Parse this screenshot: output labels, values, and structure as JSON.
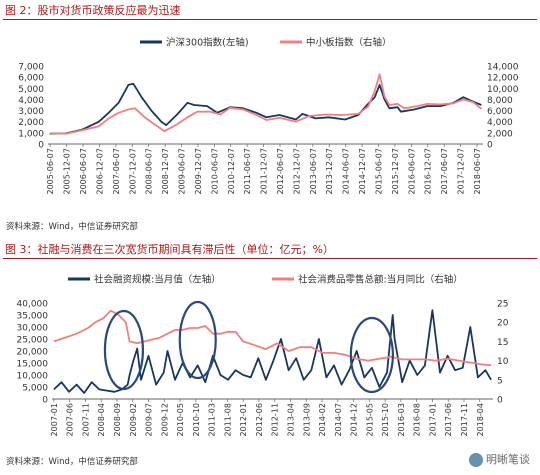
{
  "fig2": {
    "title": "图 2：股市对货币政策反应最为迅速",
    "source": "资料来源：Wind，中信证券研究部",
    "colors": {
      "s1": "#17375e",
      "s2": "#f08080"
    }
  },
  "fig3": {
    "title": "图 3：社融与消费在三次宽货币期间具有滞后性（单位：亿元；%）",
    "source": "资料来源：Wind，中信证券研究部",
    "colors": {
      "s1": "#17375e",
      "s2": "#f08080",
      "circle": "#2b4a7a"
    }
  },
  "watermark": "明晰笔谈",
  "chart_data": [
    {
      "type": "line",
      "title": "股市对货币政策反应最为迅速",
      "y_left_lim": [
        0,
        7000
      ],
      "y_left_ticks": [
        "0",
        "1,000",
        "2,000",
        "3,000",
        "4,000",
        "5,000",
        "6,000",
        "7,000"
      ],
      "y_right_lim": [
        0,
        14000
      ],
      "y_right_ticks": [
        "0",
        "2,000",
        "4,000",
        "6,000",
        "8,000",
        "10,000",
        "12,000",
        "14,000"
      ],
      "x_ticks": [
        "2005-06-07",
        "2005-12-07",
        "2006-06-07",
        "2006-12-07",
        "2007-06-07",
        "2007-12-07",
        "2008-06-07",
        "2008-12-07",
        "2009-06-07",
        "2009-12-07",
        "2010-06-07",
        "2010-12-07",
        "2011-06-07",
        "2011-12-07",
        "2012-06-07",
        "2012-12-07",
        "2013-06-07",
        "2013-12-07",
        "2014-06-07",
        "2014-12-07",
        "2015-06-07",
        "2015-12-07",
        "2016-06-07",
        "2016-12-07",
        "2017-06-07",
        "2017-12-07",
        "2018-06-07"
      ],
      "series": [
        {
          "name": "沪深300指数(左轴)",
          "axis": "left",
          "x": [
            2005.4,
            2005.9,
            2006.4,
            2006.9,
            2007.2,
            2007.5,
            2007.8,
            2007.95,
            2008.2,
            2008.5,
            2008.8,
            2008.95,
            2009.3,
            2009.6,
            2009.8,
            2010.2,
            2010.5,
            2010.9,
            2011.3,
            2011.7,
            2012.0,
            2012.4,
            2012.9,
            2013.1,
            2013.5,
            2013.9,
            2014.4,
            2014.8,
            2015.1,
            2015.3,
            2015.45,
            2015.6,
            2015.75,
            2016.0,
            2016.1,
            2016.5,
            2016.9,
            2017.3,
            2017.7,
            2018.0,
            2018.3,
            2018.55
          ],
          "y": [
            920,
            950,
            1300,
            2000,
            2800,
            3700,
            5300,
            5400,
            4200,
            3000,
            2000,
            1700,
            2700,
            3700,
            3500,
            3400,
            2800,
            3300,
            3200,
            2800,
            2400,
            2600,
            2200,
            2700,
            2300,
            2400,
            2200,
            2600,
            3600,
            4200,
            5300,
            4000,
            3200,
            3300,
            2900,
            3100,
            3400,
            3400,
            3700,
            4200,
            3800,
            3500
          ]
        },
        {
          "name": "中小板指数（右轴）",
          "axis": "right",
          "x": [
            2005.4,
            2005.9,
            2006.4,
            2006.9,
            2007.2,
            2007.5,
            2007.8,
            2008.0,
            2008.3,
            2008.6,
            2008.9,
            2009.3,
            2009.6,
            2009.9,
            2010.3,
            2010.6,
            2010.9,
            2011.3,
            2011.7,
            2012.0,
            2012.4,
            2012.9,
            2013.3,
            2013.8,
            2014.3,
            2014.8,
            2015.1,
            2015.3,
            2015.45,
            2015.6,
            2015.75,
            2016.0,
            2016.2,
            2016.6,
            2016.9,
            2017.3,
            2017.7,
            2018.0,
            2018.3,
            2018.55
          ],
          "y": [
            1900,
            1850,
            2500,
            3200,
            4600,
            5600,
            6200,
            6400,
            4800,
            3500,
            2300,
            3600,
            4800,
            5800,
            5800,
            5300,
            6500,
            6200,
            5200,
            4300,
            4700,
            4000,
            5000,
            5300,
            5200,
            5400,
            6700,
            9500,
            12500,
            8500,
            7000,
            7200,
            6400,
            6800,
            7200,
            7100,
            7300,
            8000,
            7500,
            6300
          ]
        }
      ]
    },
    {
      "type": "line",
      "title": "社融与消费在三次宽货币期间具有滞后性",
      "y_left_lim": [
        0,
        40000
      ],
      "y_left_ticks": [
        "0",
        "5,000",
        "10,000",
        "15,000",
        "20,000",
        "25,000",
        "30,000",
        "35,000",
        "40,000"
      ],
      "y_right_lim": [
        0,
        25
      ],
      "y_right_ticks": [
        "0",
        "5",
        "10",
        "15",
        "20",
        "25"
      ],
      "x_ticks": [
        "2007-01",
        "2007-06",
        "2007-11",
        "2008-04",
        "2008-09",
        "2009-02",
        "2009-07",
        "2009-12",
        "2010-05",
        "2010-10",
        "2011-03",
        "2011-08",
        "2012-01",
        "2012-06",
        "2012-11",
        "2013-04",
        "2013-09",
        "2014-02",
        "2014-07",
        "2014-12",
        "2015-05",
        "2015-10",
        "2016-03",
        "2016-08",
        "2017-01",
        "2017-06",
        "2017-11",
        "2018-04"
      ],
      "series": [
        {
          "name": "社会融资规模:当月值（左轴）",
          "axis": "left",
          "x": [
            2007.0,
            2007.2,
            2007.4,
            2007.6,
            2007.8,
            2008.0,
            2008.2,
            2008.4,
            2008.6,
            2008.8,
            2008.95,
            2009.0,
            2009.1,
            2009.2,
            2009.3,
            2009.5,
            2009.7,
            2009.9,
            2010.0,
            2010.2,
            2010.4,
            2010.6,
            2010.8,
            2011.0,
            2011.2,
            2011.4,
            2011.6,
            2011.8,
            2012.0,
            2012.2,
            2012.4,
            2012.6,
            2012.8,
            2013.0,
            2013.2,
            2013.4,
            2013.6,
            2013.8,
            2014.0,
            2014.2,
            2014.4,
            2014.6,
            2014.8,
            2015.0,
            2015.2,
            2015.4,
            2015.6,
            2015.8,
            2015.95,
            2016.0,
            2016.2,
            2016.4,
            2016.6,
            2016.8,
            2017.0,
            2017.2,
            2017.4,
            2017.6,
            2017.8,
            2018.0,
            2018.2,
            2018.4,
            2018.55
          ],
          "y": [
            4000,
            7000,
            3000,
            6000,
            2500,
            7000,
            4000,
            3500,
            3000,
            4000,
            6000,
            10000,
            16000,
            21000,
            8000,
            18000,
            6000,
            11000,
            20000,
            8000,
            15000,
            9000,
            14000,
            7000,
            18000,
            10000,
            8000,
            12000,
            10000,
            9000,
            17000,
            8000,
            16000,
            25000,
            12000,
            17000,
            8000,
            12000,
            25000,
            9000,
            14000,
            6000,
            12000,
            20000,
            9000,
            13000,
            5000,
            11000,
            35000,
            25000,
            7000,
            16000,
            10000,
            14000,
            37000,
            11000,
            18000,
            12000,
            13000,
            30000,
            9000,
            12000,
            8000
          ]
        },
        {
          "name": "社会消费品零售总额:当月同比（右轴）",
          "axis": "right",
          "x": [
            2007.0,
            2007.3,
            2007.6,
            2007.9,
            2008.1,
            2008.3,
            2008.5,
            2008.7,
            2008.9,
            2009.0,
            2009.2,
            2009.4,
            2009.6,
            2009.8,
            2010.0,
            2010.2,
            2010.4,
            2010.6,
            2010.8,
            2011.0,
            2011.2,
            2011.4,
            2011.6,
            2011.8,
            2012.0,
            2012.3,
            2012.6,
            2012.9,
            2013.2,
            2013.5,
            2013.8,
            2014.1,
            2014.4,
            2014.7,
            2015.0,
            2015.3,
            2015.6,
            2015.9,
            2016.2,
            2016.5,
            2016.8,
            2017.1,
            2017.4,
            2017.7,
            2018.0,
            2018.3,
            2018.55
          ],
          "y": [
            15,
            16,
            17,
            18.5,
            20,
            21,
            23,
            22,
            20,
            15,
            14.5,
            15,
            15.5,
            16,
            17,
            18,
            18,
            18.5,
            18.5,
            19,
            17,
            17,
            17.5,
            17.5,
            15,
            14,
            13,
            14.5,
            12.5,
            13.5,
            13.5,
            12,
            12,
            11.5,
            10.5,
            10,
            10.5,
            11,
            10.3,
            10.3,
            10.3,
            10,
            10.5,
            10,
            9.5,
            9,
            8.8
          ]
        }
      ]
    }
  ]
}
